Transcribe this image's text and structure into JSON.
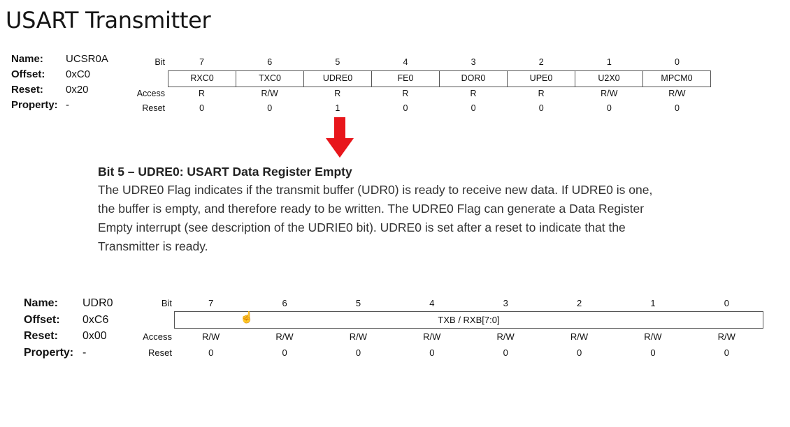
{
  "page": {
    "title": "USART Transmitter"
  },
  "register1": {
    "meta": {
      "name_key": "Name:",
      "name_val": "UCSR0A",
      "offset_key": "Offset:",
      "offset_val": "0xC0",
      "reset_key": "Reset:",
      "reset_val": "0x20",
      "property_key": "Property:",
      "property_val": "-"
    },
    "bit_label": "Bit",
    "access_label": "Access",
    "reset_label": "Reset",
    "bits": [
      "7",
      "6",
      "5",
      "4",
      "3",
      "2",
      "1",
      "0"
    ],
    "fields": [
      "RXC0",
      "TXC0",
      "UDRE0",
      "FE0",
      "DOR0",
      "UPE0",
      "U2X0",
      "MPCM0"
    ],
    "access": [
      "R",
      "R/W",
      "R",
      "R",
      "R",
      "R",
      "R/W",
      "R/W"
    ],
    "reset": [
      "0",
      "0",
      "1",
      "0",
      "0",
      "0",
      "0",
      "0"
    ]
  },
  "arrow_color": "#e8161b",
  "description": {
    "heading": "Bit 5 – UDRE0:  USART Data Register Empty",
    "lines": [
      "The UDRE0 Flag indicates if the transmit buffer (UDR0) is ready to receive new data. If UDRE0 is one,",
      "the buffer is empty, and therefore ready to be written. The UDRE0 Flag can generate a Data Register",
      "Empty interrupt (see description of the UDRIE0 bit). UDRE0 is set after a reset to indicate that the",
      "Transmitter is ready."
    ]
  },
  "register2": {
    "meta": {
      "name_key": "Name:",
      "name_val": "UDR0",
      "offset_key": "Offset:",
      "offset_val": "0xC6",
      "reset_key": "Reset:",
      "reset_val": "0x00",
      "property_key": "Property:",
      "property_val": "-"
    },
    "bit_label": "Bit",
    "access_label": "Access",
    "reset_label": "Reset",
    "bits": [
      "7",
      "6",
      "5",
      "4",
      "3",
      "2",
      "1",
      "0"
    ],
    "field": "TXB / RXB[7:0]",
    "access": [
      "R/W",
      "R/W",
      "R/W",
      "R/W",
      "R/W",
      "R/W",
      "R/W",
      "R/W"
    ],
    "reset": [
      "0",
      "0",
      "0",
      "0",
      "0",
      "0",
      "0",
      "0"
    ]
  },
  "cursor_icon": "hand-pointer-icon"
}
